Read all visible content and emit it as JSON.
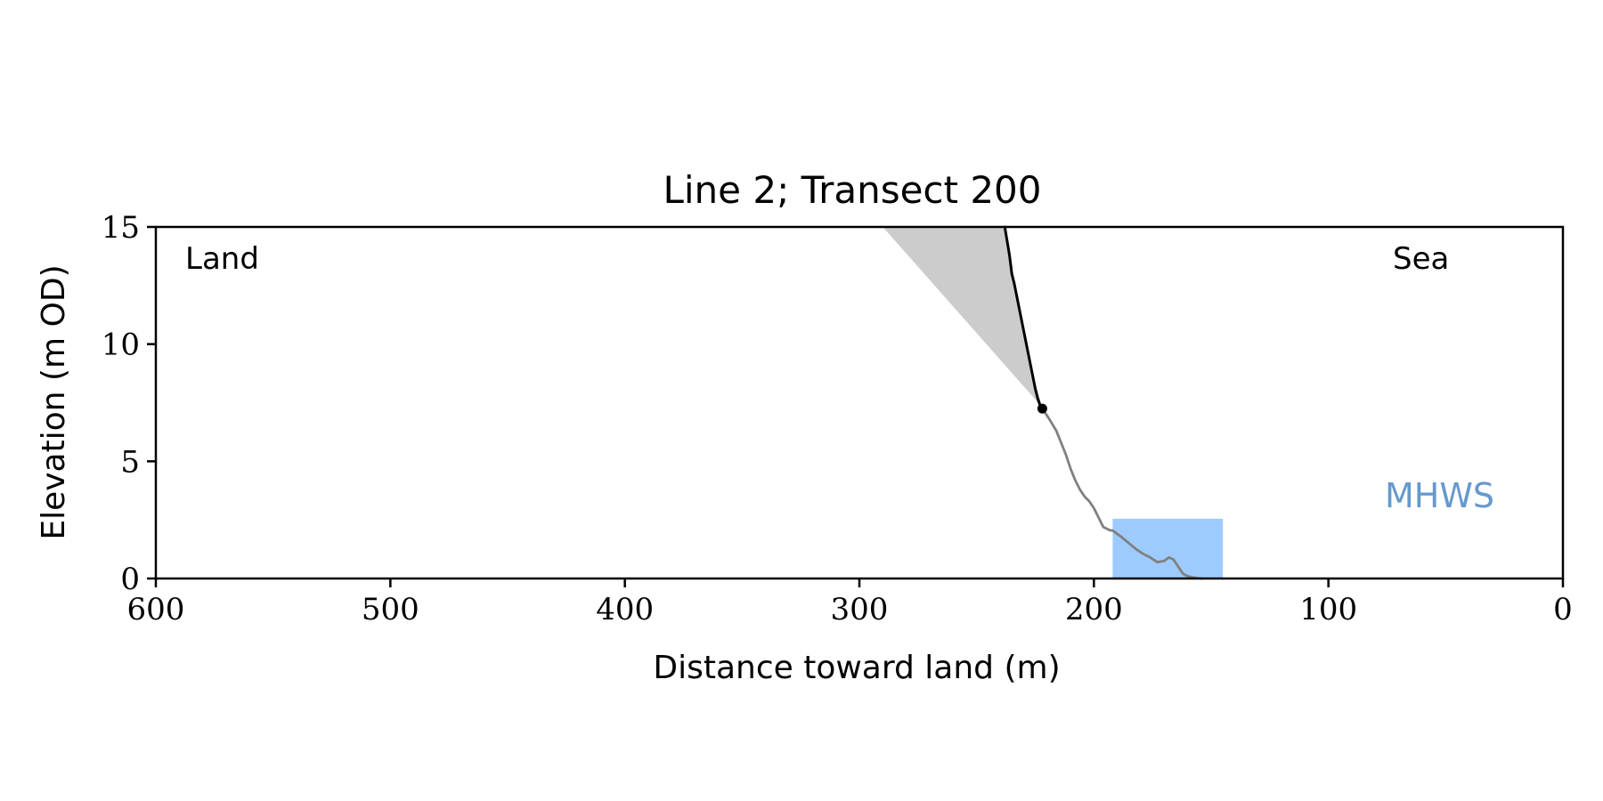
{
  "chart_data": {
    "type": "line",
    "title": "Line 2; Transect 200",
    "xlabel": "Distance toward land (m)",
    "ylabel": "Elevation (m OD)",
    "xlim": [
      600,
      0
    ],
    "ylim": [
      0,
      15
    ],
    "x_reversed": true,
    "xticks": [
      600,
      500,
      400,
      300,
      200,
      100,
      0
    ],
    "yticks": [
      0,
      5,
      10,
      15
    ],
    "annotations": {
      "land": "Land",
      "sea": "Sea",
      "mhws": "MHWS"
    },
    "colors": {
      "cliff_line": "#000000",
      "profile_line": "#808080",
      "shaded_wedge": "#cccccc",
      "mhws_box": "#9ecbff",
      "mhws_text": "#6699cc"
    },
    "grey_wedge": {
      "points": [
        [
          290,
          15
        ],
        [
          238,
          15
        ],
        [
          235,
          13
        ],
        [
          231,
          11
        ],
        [
          228,
          9.5
        ],
        [
          224,
          8
        ],
        [
          222,
          7.3
        ]
      ]
    },
    "mhws_band": {
      "x_range": [
        192,
        145
      ],
      "y_range": [
        0,
        2.55
      ]
    },
    "series": [
      {
        "role": "cliff",
        "x": [
          238,
          237,
          236,
          235,
          234,
          233,
          232,
          231,
          230,
          229,
          228,
          227,
          226,
          225,
          224,
          223,
          222
        ],
        "y": [
          15,
          14.4,
          13.8,
          13.0,
          12.6,
          12.1,
          11.6,
          11.1,
          10.6,
          10.1,
          9.6,
          9.1,
          8.6,
          8.1,
          7.7,
          7.4,
          7.25
        ]
      },
      {
        "role": "profile",
        "x": [
          222,
          219,
          216,
          214,
          212,
          210,
          208,
          206,
          204,
          202,
          200,
          198,
          196,
          194,
          193,
          192,
          190,
          188,
          185,
          182,
          179,
          176,
          173,
          170,
          168,
          166,
          164,
          162,
          160,
          158,
          156,
          154
        ],
        "y": [
          7.25,
          6.8,
          6.3,
          5.8,
          5.3,
          4.7,
          4.2,
          3.8,
          3.5,
          3.3,
          3.0,
          2.6,
          2.2,
          2.1,
          2.05,
          2.05,
          1.9,
          1.75,
          1.5,
          1.25,
          1.05,
          0.9,
          0.7,
          0.75,
          0.9,
          0.8,
          0.5,
          0.2,
          0.1,
          0.05,
          0.02,
          0.0
        ]
      },
      {
        "role": "cliff-toe-point",
        "x": [
          222
        ],
        "y": [
          7.25
        ]
      }
    ]
  }
}
